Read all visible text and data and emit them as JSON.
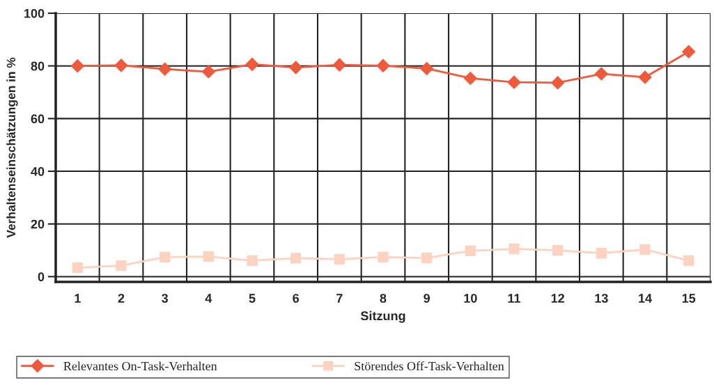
{
  "chart_data": {
    "type": "line",
    "xlabel": "Sitzung",
    "ylabel": "Verhaltenseinschätzungen in %",
    "categories": [
      "1",
      "2",
      "3",
      "4",
      "5",
      "6",
      "7",
      "8",
      "9",
      "10",
      "11",
      "12",
      "13",
      "14",
      "15"
    ],
    "series": [
      {
        "name": "Relevantes On-Task-Verhalten",
        "color": "#ee5a3c",
        "marker": "diamond",
        "values": [
          80,
          80.2,
          78.8,
          77.8,
          80.6,
          79.4,
          80.4,
          80.1,
          79,
          75.3,
          73.8,
          73.6,
          77,
          75.7,
          85.4
        ]
      },
      {
        "name": "Störendes Off-Task-Verhalten",
        "color": "#fcd2c0",
        "marker": "square",
        "values": [
          3.4,
          4.2,
          7.4,
          7.6,
          6.1,
          7,
          6.6,
          7.4,
          7.1,
          9.8,
          10.5,
          10,
          8.9,
          10.3,
          6.1
        ]
      }
    ],
    "ylim": [
      -2,
      100
    ],
    "yticks": [
      0,
      20,
      40,
      60,
      80,
      100
    ],
    "grid": true,
    "legend": "bottom",
    "line_style": "solid"
  }
}
